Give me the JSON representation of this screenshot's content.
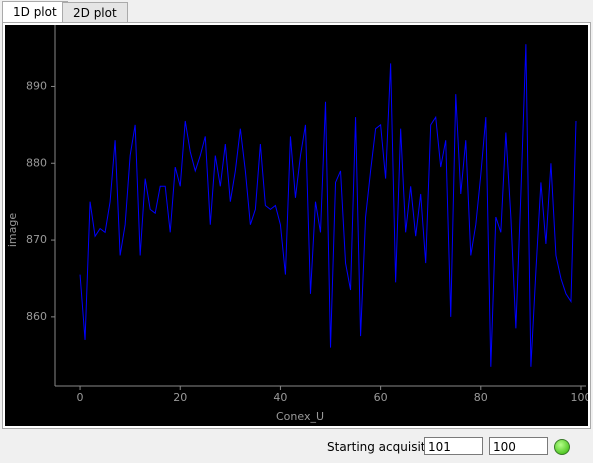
{
  "tabs": [
    "1D plot",
    "2D plot"
  ],
  "chart_data": {
    "type": "line",
    "x_label": "Conex_U",
    "y_label": "image",
    "x": [
      0,
      1,
      2,
      3,
      4,
      5,
      6,
      7,
      8,
      9,
      10,
      11,
      12,
      13,
      14,
      15,
      16,
      17,
      18,
      19,
      20,
      21,
      22,
      23,
      24,
      25,
      26,
      27,
      28,
      29,
      30,
      31,
      32,
      33,
      34,
      35,
      36,
      37,
      38,
      39,
      40,
      41,
      42,
      43,
      44,
      45,
      46,
      47,
      48,
      49,
      50,
      51,
      52,
      53,
      54,
      55,
      56,
      57,
      58,
      59,
      60,
      61,
      62,
      63,
      64,
      65,
      66,
      67,
      68,
      69,
      70,
      71,
      72,
      73,
      74,
      75,
      76,
      77,
      78,
      79,
      80,
      81,
      82,
      83,
      84,
      85,
      86,
      87,
      88,
      89,
      90,
      91,
      92,
      93,
      94,
      95,
      96,
      97,
      98,
      99
    ],
    "series": [
      {
        "name": "image",
        "color": "#0000ff",
        "values": [
          865.5,
          857,
          875,
          870.5,
          871.5,
          871,
          875,
          883,
          868,
          872,
          881,
          885,
          868,
          878,
          874,
          873.5,
          877,
          877,
          871,
          879.5,
          877,
          885.5,
          881.5,
          879,
          881,
          883.5,
          872,
          881,
          877,
          882.5,
          875,
          879,
          884.5,
          879,
          872,
          874,
          882.5,
          874.5,
          874,
          874.5,
          872,
          865.5,
          883.5,
          875.5,
          881,
          885,
          863,
          875,
          871,
          888,
          856,
          877.5,
          879,
          867,
          863.5,
          886,
          857.5,
          873,
          879,
          884.5,
          885,
          878,
          893,
          864.5,
          884.5,
          871,
          877,
          870.5,
          876,
          867,
          885,
          886,
          879.5,
          883,
          860,
          889,
          876,
          883,
          868,
          872,
          878.5,
          886,
          853.5,
          873,
          871,
          884,
          873,
          858.5,
          876,
          895.5,
          853.5,
          866,
          877.5,
          869.5,
          880,
          868,
          865,
          863,
          862,
          885.5
        ]
      }
    ],
    "xlim": [
      -5,
      101
    ],
    "ylim": [
      851,
      898
    ],
    "xticks": [
      0,
      20,
      40,
      60,
      80,
      100
    ],
    "yticks": [
      860,
      870,
      880,
      890
    ]
  },
  "status": {
    "label": "Starting acquisition",
    "field1": "101",
    "field2": "100"
  }
}
